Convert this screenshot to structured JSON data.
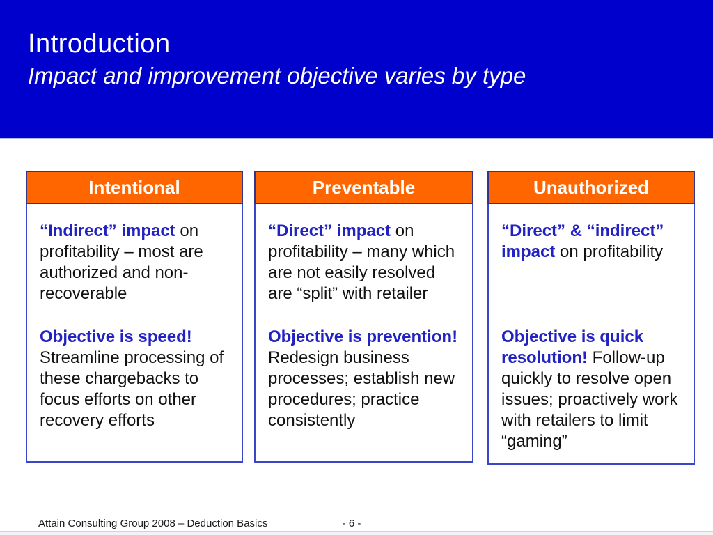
{
  "slide": {
    "title": "Introduction",
    "subtitle": "Impact and improvement objective varies by type"
  },
  "colors": {
    "banner_blue": "#0000CC",
    "header_orange": "#FF6600",
    "accent_text_blue": "#2222C2",
    "body_box_border": "#3946C8",
    "header_box_border": "#333388"
  },
  "columns": [
    {
      "header": "Intentional",
      "para1_lead": "“Indirect” impact",
      "para1_rest": " on profitability – most are authorized and non-recoverable",
      "para2_lead": "Objective is speed!",
      "para2_rest": " Streamline processing of these chargebacks to focus efforts on other recovery efforts"
    },
    {
      "header": "Preventable",
      "para1_lead": "“Direct” impact",
      "para1_rest": " on profitability – many which are not easily resolved are “split” with retailer",
      "para2_lead": "Objective is prevention!",
      "para2_rest": " Redesign business processes; establish new procedures; practice consistently"
    },
    {
      "header": "Unauthorized",
      "para1_lead": "“Direct” & “indirect” impact",
      "para1_rest": " on profitability",
      "para2_lead": "Objective is quick resolution!",
      "para2_rest": " Follow-up quickly to resolve open issues; proactively work with retailers to limit “gaming”"
    }
  ],
  "footer": {
    "left": "Attain Consulting Group 2008 – Deduction Basics",
    "page": "- 6 -"
  }
}
